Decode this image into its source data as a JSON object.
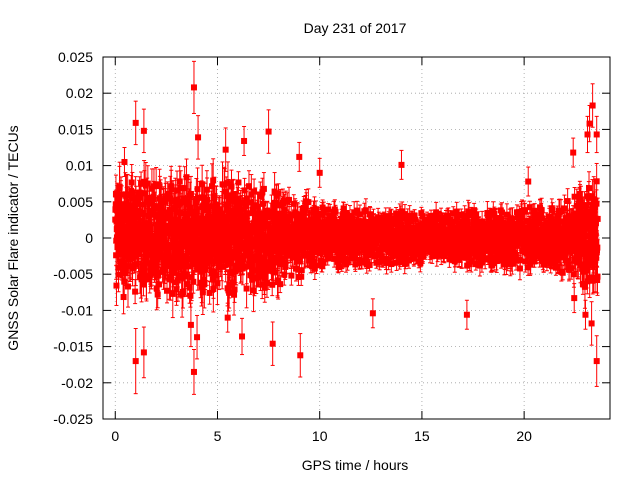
{
  "chart_data": {
    "type": "scatter",
    "title": "Day 231 of 2017",
    "xlabel": "GPS time / hours",
    "ylabel": "GNSS Solar Flare indicator / TECUs",
    "xlim": [
      -0.6,
      24.2
    ],
    "ylim": [
      -0.025,
      0.025
    ],
    "xticks": [
      0,
      5,
      10,
      15,
      20
    ],
    "xtick_labels": [
      "0",
      "5",
      "10",
      "15",
      "20"
    ],
    "yticks": [
      -0.025,
      -0.02,
      -0.015,
      -0.01,
      -0.005,
      0,
      0.005,
      0.01,
      0.015,
      0.02,
      0.025
    ],
    "ytick_labels": [
      "-0.025",
      "-0.02",
      "-0.015",
      "-0.01",
      "-0.005",
      "0",
      "0.005",
      "0.01",
      "0.015",
      "0.02",
      "0.025"
    ],
    "grid": true,
    "series": [
      {
        "name": "GNSS Solar Flare indicator",
        "color": "#ff0000",
        "marker": "square",
        "error_bars": true,
        "x_range_hours": [
          0,
          23.6
        ],
        "sample_interval_hours": 0.0083,
        "points_shown_approx": 2840,
        "envelope": [
          {
            "x": 0,
            "spread": 0.0085
          },
          {
            "x": 2,
            "spread": 0.0085
          },
          {
            "x": 4,
            "spread": 0.0085
          },
          {
            "x": 6,
            "spread": 0.0078
          },
          {
            "x": 8,
            "spread": 0.0065
          },
          {
            "x": 10,
            "spread": 0.0045
          },
          {
            "x": 12,
            "spread": 0.004
          },
          {
            "x": 14,
            "spread": 0.0037
          },
          {
            "x": 16,
            "spread": 0.0038
          },
          {
            "x": 18,
            "spread": 0.004
          },
          {
            "x": 20,
            "spread": 0.0043
          },
          {
            "x": 22,
            "spread": 0.005
          },
          {
            "x": 23,
            "spread": 0.0075
          },
          {
            "x": 23.6,
            "spread": 0.0085
          }
        ],
        "outliers": [
          {
            "x": 3.85,
            "y": 0.0208,
            "err": 0.0036
          },
          {
            "x": 3.85,
            "y": -0.0185,
            "err": 0.0031
          },
          {
            "x": 4.05,
            "y": 0.0139,
            "err": 0.003
          },
          {
            "x": 4.0,
            "y": -0.0137,
            "err": 0.003
          },
          {
            "x": 3.7,
            "y": -0.012,
            "err": 0.003
          },
          {
            "x": 1.0,
            "y": -0.017,
            "err": 0.0045
          },
          {
            "x": 1.0,
            "y": 0.0159,
            "err": 0.003
          },
          {
            "x": 1.4,
            "y": 0.0148,
            "err": 0.003
          },
          {
            "x": 1.4,
            "y": -0.0158,
            "err": 0.0035
          },
          {
            "x": 0.45,
            "y": 0.0105,
            "err": 0.002
          },
          {
            "x": 5.4,
            "y": 0.0122,
            "err": 0.003
          },
          {
            "x": 5.5,
            "y": -0.011,
            "err": 0.002
          },
          {
            "x": 6.2,
            "y": -0.0136,
            "err": 0.0025
          },
          {
            "x": 6.3,
            "y": 0.0134,
            "err": 0.002
          },
          {
            "x": 7.5,
            "y": 0.0147,
            "err": 0.003
          },
          {
            "x": 7.7,
            "y": -0.0146,
            "err": 0.003
          },
          {
            "x": 9.05,
            "y": -0.0162,
            "err": 0.003
          },
          {
            "x": 9.0,
            "y": 0.0112,
            "err": 0.002
          },
          {
            "x": 10.0,
            "y": 0.009,
            "err": 0.002
          },
          {
            "x": 12.6,
            "y": -0.0104,
            "err": 0.002
          },
          {
            "x": 14.0,
            "y": 0.0101,
            "err": 0.002
          },
          {
            "x": 17.2,
            "y": -0.0106,
            "err": 0.002
          },
          {
            "x": 20.2,
            "y": 0.0078,
            "err": 0.002
          },
          {
            "x": 22.4,
            "y": 0.0118,
            "err": 0.002
          },
          {
            "x": 22.45,
            "y": -0.0083,
            "err": 0.002
          },
          {
            "x": 23.0,
            "y": -0.0106,
            "err": 0.002
          },
          {
            "x": 23.1,
            "y": 0.0143,
            "err": 0.0025
          },
          {
            "x": 23.2,
            "y": 0.0158,
            "err": 0.0025
          },
          {
            "x": 23.35,
            "y": 0.0183,
            "err": 0.003
          },
          {
            "x": 23.3,
            "y": -0.0118,
            "err": 0.003
          },
          {
            "x": 23.55,
            "y": -0.017,
            "err": 0.0035
          },
          {
            "x": 23.55,
            "y": 0.0143,
            "err": 0.0025
          }
        ]
      }
    ]
  }
}
